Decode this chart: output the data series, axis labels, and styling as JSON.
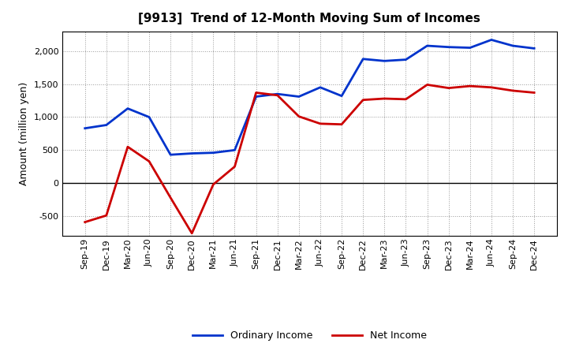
{
  "title": "[9913]  Trend of 12-Month Moving Sum of Incomes",
  "ylabel": "Amount (million yen)",
  "labels": [
    "Sep-19",
    "Dec-19",
    "Mar-20",
    "Jun-20",
    "Sep-20",
    "Dec-20",
    "Mar-21",
    "Jun-21",
    "Sep-21",
    "Dec-21",
    "Mar-22",
    "Jun-22",
    "Sep-22",
    "Dec-22",
    "Mar-23",
    "Jun-23",
    "Sep-23",
    "Dec-23",
    "Mar-24",
    "Jun-24",
    "Sep-24",
    "Dec-24"
  ],
  "ordinary_income": [
    830,
    880,
    1130,
    1000,
    430,
    450,
    460,
    500,
    1310,
    1350,
    1310,
    1450,
    1320,
    1880,
    1850,
    1870,
    2080,
    2060,
    2050,
    2170,
    2080,
    2040
  ],
  "net_income": [
    -590,
    -490,
    550,
    330,
    -220,
    -760,
    -20,
    250,
    1370,
    1330,
    1010,
    900,
    890,
    1260,
    1280,
    1270,
    1490,
    1440,
    1470,
    1450,
    1400,
    1370
  ],
  "ordinary_color": "#0033cc",
  "net_color": "#cc0000",
  "background_color": "#ffffff",
  "plot_bg_color": "#ffffff",
  "grid_color": "#999999",
  "ylim": [
    -800,
    2300
  ],
  "yticks": [
    -500,
    0,
    500,
    1000,
    1500,
    2000
  ],
  "legend_ordinary": "Ordinary Income",
  "legend_net": "Net Income",
  "line_width": 2.0,
  "title_fontsize": 11,
  "label_fontsize": 8,
  "axis_label_fontsize": 9
}
